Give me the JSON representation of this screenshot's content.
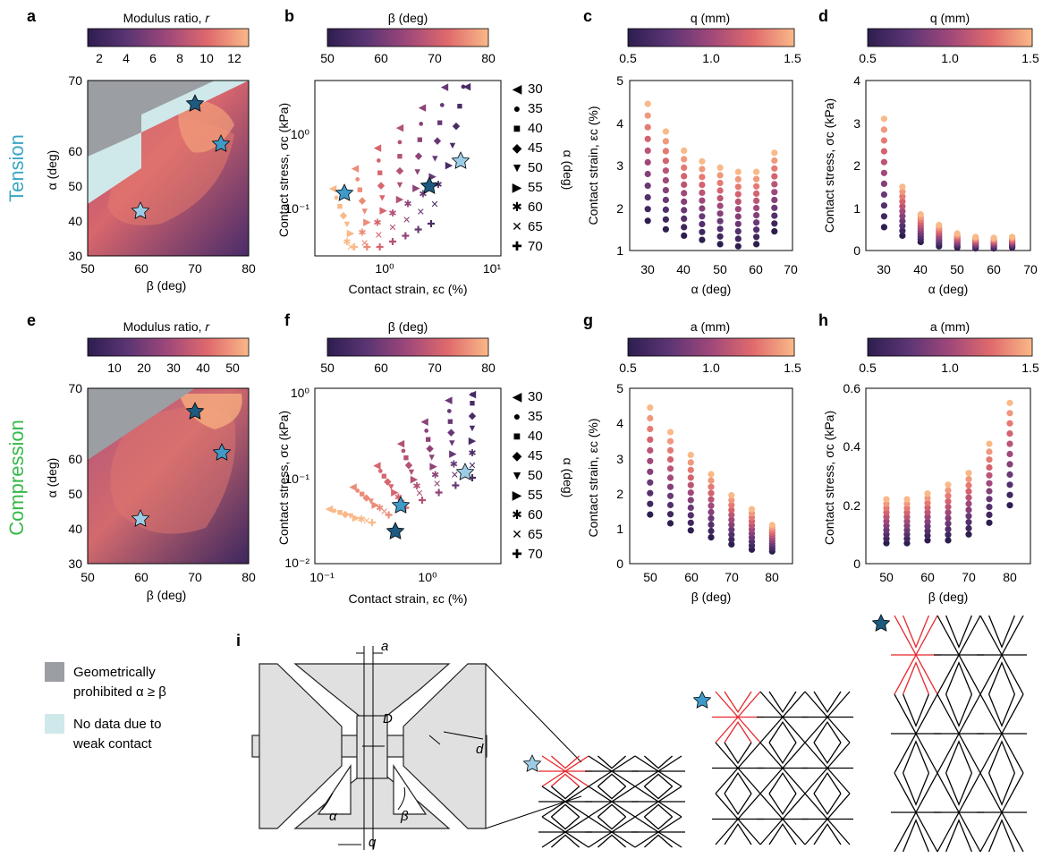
{
  "colors": {
    "gray_region": "#9b9ea3",
    "cyan_region": "#cfe8ea",
    "tension_label": "#3aa6c4",
    "compression_label": "#36b84a",
    "star_dark": "#1d5a80",
    "star_mid": "#3f9ac8",
    "star_light": "#9dcde6",
    "red_cell": "#e8262b",
    "plate_fill": "#e0e0e0"
  },
  "panels": {
    "a": {
      "letter": "a",
      "cbar_title": "Modulus ratio, 𝑟",
      "cbar_ticks": [
        "2",
        "4",
        "6",
        "8",
        "10",
        "12"
      ],
      "xlabel": "β (deg)",
      "ylabel": "α (deg)",
      "xticks": [
        "50",
        "60",
        "70",
        "80"
      ],
      "yticks": [
        "30",
        "40",
        "50",
        "60",
        "70"
      ],
      "side_label": "Tension"
    },
    "b": {
      "letter": "b",
      "cbar_title": "β (deg)",
      "cbar_ticks": [
        "50",
        "60",
        "70",
        "80"
      ],
      "xlabel": "Contact strain, εc (%)",
      "ylabel": "Contact stress, σc (kPa)",
      "xticks": [
        "10⁰",
        "10¹"
      ],
      "yticks": [
        "10⁻¹",
        "10⁰"
      ],
      "legend_title": "α (deg)"
    },
    "c": {
      "letter": "c",
      "cbar_title": "q (mm)",
      "cbar_ticks": [
        "0.5",
        "1.0",
        "1.5"
      ],
      "xlabel": "α (deg)",
      "ylabel": "Contact strain, εc (%)",
      "xticks": [
        "30",
        "40",
        "50",
        "60",
        "70"
      ],
      "yticks": [
        "1",
        "2",
        "3",
        "4",
        "5"
      ]
    },
    "d": {
      "letter": "d",
      "cbar_title": "q (mm)",
      "cbar_ticks": [
        "0.5",
        "1.0",
        "1.5"
      ],
      "xlabel": "α (deg)",
      "ylabel": "Contact stress, σc (kPa)",
      "xticks": [
        "30",
        "40",
        "50",
        "60",
        "70"
      ],
      "yticks": [
        "0",
        "1",
        "2",
        "3",
        "4"
      ]
    },
    "e": {
      "letter": "e",
      "cbar_title": "Modulus ratio, 𝑟",
      "cbar_ticks": [
        "10",
        "20",
        "30",
        "40",
        "50"
      ],
      "xlabel": "β (deg)",
      "ylabel": "α (deg)",
      "xticks": [
        "50",
        "60",
        "70",
        "80"
      ],
      "yticks": [
        "30",
        "40",
        "50",
        "60",
        "70"
      ],
      "side_label": "Compression"
    },
    "f": {
      "letter": "f",
      "cbar_title": "β (deg)",
      "cbar_ticks": [
        "50",
        "60",
        "70",
        "80"
      ],
      "xlabel": "Contact strain, εc (%)",
      "ylabel": "Contact stress, σc (kPa)",
      "xticks": [
        "10⁻¹",
        "10⁰"
      ],
      "yticks": [
        "10⁻²",
        "10⁻¹",
        "10⁰"
      ],
      "legend_title": "α (deg)"
    },
    "g": {
      "letter": "g",
      "cbar_title": "a (mm)",
      "cbar_ticks": [
        "0.5",
        "1.0",
        "1.5"
      ],
      "xlabel": "β (deg)",
      "ylabel": "Contact strain, εc (%)",
      "xticks": [
        "50",
        "60",
        "70",
        "80"
      ],
      "yticks": [
        "0",
        "1",
        "2",
        "3",
        "4",
        "5"
      ]
    },
    "h": {
      "letter": "h",
      "cbar_title": "a (mm)",
      "cbar_ticks": [
        "0.5",
        "1.0",
        "1.5"
      ],
      "xlabel": "β (deg)",
      "ylabel": "Contact stress, σc (kPa)",
      "xticks": [
        "50",
        "60",
        "70",
        "80"
      ],
      "yticks": [
        "0",
        "0.2",
        "0.4",
        "0.6"
      ]
    },
    "i": {
      "letter": "i",
      "dim_labels": [
        "a",
        "d",
        "D",
        "α",
        "β",
        "q"
      ]
    }
  },
  "legend_alpha": [
    {
      "label": "30",
      "marker": "◀"
    },
    {
      "label": "35",
      "marker": "●"
    },
    {
      "label": "40",
      "marker": "■"
    },
    {
      "label": "45",
      "marker": "◆"
    },
    {
      "label": "50",
      "marker": "▼"
    },
    {
      "label": "55",
      "marker": "▶"
    },
    {
      "label": "60",
      "marker": "✱"
    },
    {
      "label": "65",
      "marker": "✕"
    },
    {
      "label": "70",
      "marker": "✚"
    }
  ],
  "region_legend": [
    {
      "label_line1": "Geometrically",
      "label_line2": "prohibited α ≥ β"
    },
    {
      "label_line1": "No data due to",
      "label_line2": "weak contact"
    }
  ],
  "chart_data": [
    {
      "panel": "c",
      "type": "scatter",
      "x": [
        30,
        35,
        40,
        45,
        50,
        55,
        60,
        65
      ],
      "y_min": [
        1.7,
        1.5,
        1.35,
        1.25,
        1.15,
        1.1,
        1.15,
        1.45
      ],
      "y_max": [
        4.45,
        3.8,
        3.35,
        3.1,
        2.95,
        2.85,
        2.85,
        3.3
      ],
      "xlim": [
        25,
        70
      ],
      "ylim": [
        1,
        5
      ],
      "colorbar": "q (mm)",
      "color_range": [
        0.5,
        1.5
      ]
    },
    {
      "panel": "d",
      "type": "scatter",
      "x": [
        30,
        35,
        40,
        45,
        50,
        55,
        60,
        65
      ],
      "y_min": [
        0.55,
        0.35,
        0.2,
        0.1,
        0.07,
        0.05,
        0.05,
        0.07
      ],
      "y_max": [
        3.1,
        1.5,
        0.85,
        0.6,
        0.4,
        0.32,
        0.3,
        0.32
      ],
      "xlim": [
        25,
        70
      ],
      "ylim": [
        0,
        4
      ],
      "colorbar": "q (mm)",
      "color_range": [
        0.5,
        1.5
      ]
    },
    {
      "panel": "g",
      "type": "scatter",
      "x": [
        50,
        55,
        60,
        65,
        70,
        75,
        80
      ],
      "y_min": [
        1.4,
        1.15,
        0.95,
        0.75,
        0.55,
        0.4,
        0.35
      ],
      "y_max": [
        4.45,
        3.75,
        3.1,
        2.55,
        1.95,
        1.55,
        1.1
      ],
      "xlim": [
        45,
        85
      ],
      "ylim": [
        0,
        5
      ],
      "colorbar": "a (mm)",
      "color_range": [
        0.5,
        1.5
      ]
    },
    {
      "panel": "h",
      "type": "scatter",
      "x": [
        50,
        55,
        60,
        65,
        70,
        75,
        80
      ],
      "y_min": [
        0.07,
        0.07,
        0.08,
        0.08,
        0.1,
        0.14,
        0.2
      ],
      "y_max": [
        0.22,
        0.22,
        0.24,
        0.27,
        0.31,
        0.41,
        0.55
      ],
      "xlim": [
        45,
        85
      ],
      "ylim": [
        0,
        0.6
      ],
      "colorbar": "a (mm)",
      "color_range": [
        0.5,
        1.5
      ]
    }
  ]
}
